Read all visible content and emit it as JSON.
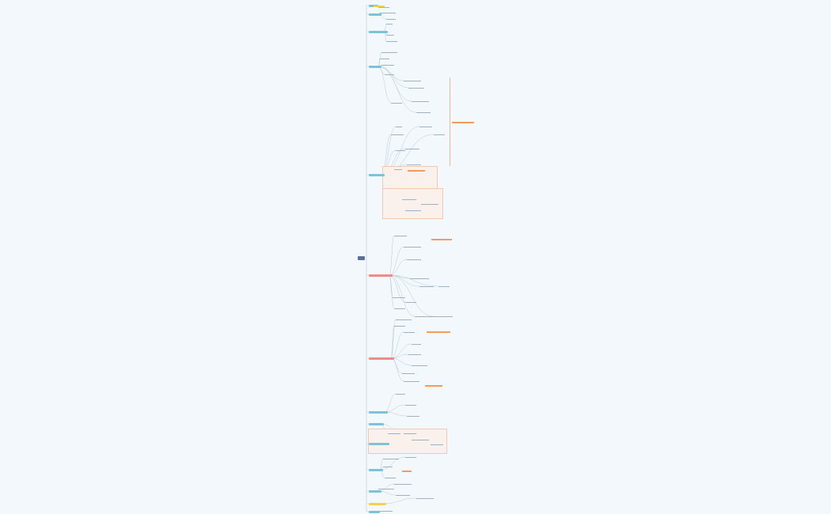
{
  "title": "",
  "root": {
    "label": ""
  },
  "colors": {
    "background": "#f3f8fc",
    "root": "#5c6fa0",
    "branch_blue": "#7cc3da",
    "branch_red": "#f08a8a",
    "branch_yellow": "#f6d24a",
    "highlight_orange": "#f49a5c",
    "line": "#b9c9d6"
  },
  "branches": [],
  "highlights": [],
  "leaves": []
}
